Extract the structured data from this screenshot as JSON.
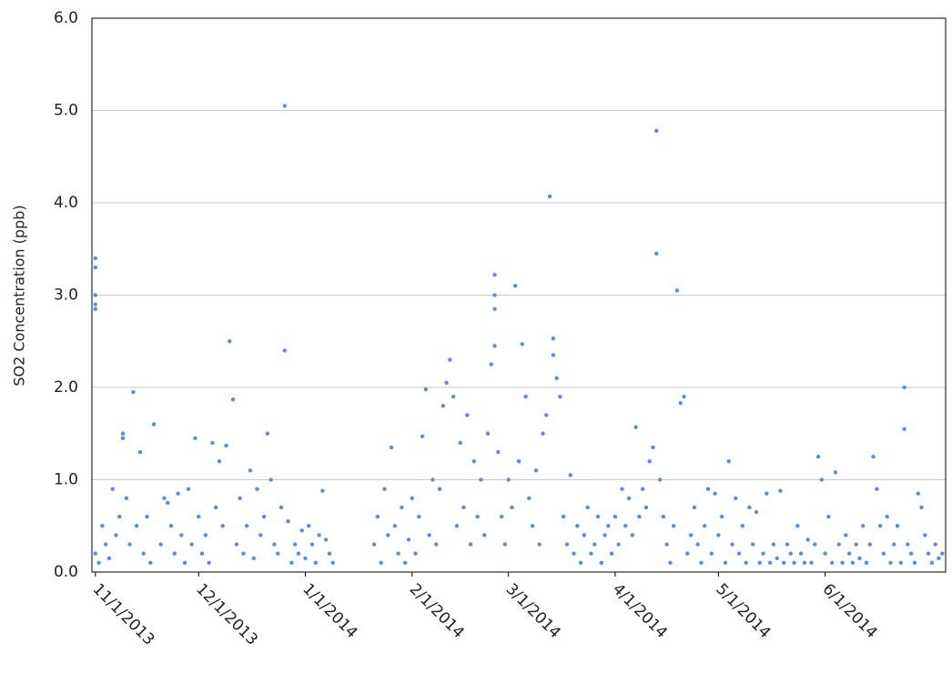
{
  "chart_data": {
    "type": "scatter",
    "y_label": "SO2 Concentration (ppb)",
    "color": "#5b8ed6",
    "grid": true,
    "ylim": [
      0,
      6
    ],
    "yticks": [
      {
        "value": 0,
        "label": "0.0"
      },
      {
        "value": 1,
        "label": "1.0"
      },
      {
        "value": 2,
        "label": "2.0"
      },
      {
        "value": 3,
        "label": "3.0"
      },
      {
        "value": 4,
        "label": "4.0"
      },
      {
        "value": 5,
        "label": "5.0"
      },
      {
        "value": 6,
        "label": "6.0"
      }
    ],
    "xlim": [
      "2013-10-31",
      "2014-07-06"
    ],
    "xticks": [
      {
        "value": "2013-11-01",
        "label": "11/1/2013"
      },
      {
        "value": "2013-12-01",
        "label": "12/1/2013"
      },
      {
        "value": "2014-01-01",
        "label": "1/1/2014"
      },
      {
        "value": "2014-02-01",
        "label": "2/1/2014"
      },
      {
        "value": "2014-03-01",
        "label": "3/1/2014"
      },
      {
        "value": "2014-04-01",
        "label": "4/1/2014"
      },
      {
        "value": "2014-05-01",
        "label": "5/1/2014"
      },
      {
        "value": "2014-06-01",
        "label": "6/1/2014"
      }
    ],
    "x": [
      "2013-11-01",
      "2013-11-01",
      "2013-11-01",
      "2013-11-01",
      "2013-11-01",
      "2013-11-01",
      "2013-11-02",
      "2013-11-03",
      "2013-11-04",
      "2013-11-05",
      "2013-11-06",
      "2013-11-07",
      "2013-11-08",
      "2013-11-09",
      "2013-11-09",
      "2013-11-10",
      "2013-11-11",
      "2013-11-12",
      "2013-11-13",
      "2013-11-14",
      "2013-11-15",
      "2013-11-16",
      "2013-11-17",
      "2013-11-18",
      "2013-11-20",
      "2013-11-21",
      "2013-11-22",
      "2013-11-23",
      "2013-11-24",
      "2013-11-25",
      "2013-11-26",
      "2013-11-27",
      "2013-11-28",
      "2013-11-29",
      "2013-11-30",
      "2013-12-01",
      "2013-12-02",
      "2013-12-03",
      "2013-12-04",
      "2013-12-05",
      "2013-12-06",
      "2013-12-07",
      "2013-12-08",
      "2013-12-09",
      "2013-12-10",
      "2013-12-11",
      "2013-12-12",
      "2013-12-13",
      "2013-12-14",
      "2013-12-15",
      "2013-12-16",
      "2013-12-17",
      "2013-12-18",
      "2013-12-19",
      "2013-12-20",
      "2013-12-21",
      "2013-12-22",
      "2013-12-23",
      "2013-12-24",
      "2013-12-25",
      "2013-12-26",
      "2013-12-26",
      "2013-12-27",
      "2013-12-28",
      "2013-12-29",
      "2013-12-30",
      "2013-12-31",
      "2014-01-01",
      "2014-01-02",
      "2014-01-03",
      "2014-01-04",
      "2014-01-05",
      "2014-01-06",
      "2014-01-07",
      "2014-01-08",
      "2014-01-09",
      "2014-01-21",
      "2014-01-22",
      "2014-01-23",
      "2014-01-24",
      "2014-01-25",
      "2014-01-26",
      "2014-01-27",
      "2014-01-28",
      "2014-01-29",
      "2014-01-30",
      "2014-01-31",
      "2014-02-01",
      "2014-02-02",
      "2014-02-03",
      "2014-02-04",
      "2014-02-05",
      "2014-02-06",
      "2014-02-07",
      "2014-02-08",
      "2014-02-09",
      "2014-02-10",
      "2014-02-11",
      "2014-02-12",
      "2014-02-13",
      "2014-02-14",
      "2014-02-15",
      "2014-02-16",
      "2014-02-17",
      "2014-02-18",
      "2014-02-19",
      "2014-02-20",
      "2014-02-21",
      "2014-02-22",
      "2014-02-23",
      "2014-02-24",
      "2014-02-25",
      "2014-02-25",
      "2014-02-25",
      "2014-02-25",
      "2014-02-26",
      "2014-02-27",
      "2014-02-28",
      "2014-03-01",
      "2014-03-02",
      "2014-03-03",
      "2014-03-04",
      "2014-03-05",
      "2014-03-06",
      "2014-03-07",
      "2014-03-08",
      "2014-03-09",
      "2014-03-10",
      "2014-03-11",
      "2014-03-12",
      "2014-03-13",
      "2014-03-14",
      "2014-03-14",
      "2014-03-15",
      "2014-03-16",
      "2014-03-17",
      "2014-03-18",
      "2014-03-19",
      "2014-03-20",
      "2014-03-21",
      "2014-03-22",
      "2014-03-23",
      "2014-03-24",
      "2014-03-25",
      "2014-03-26",
      "2014-03-27",
      "2014-03-28",
      "2014-03-29",
      "2014-03-30",
      "2014-03-31",
      "2014-04-01",
      "2014-04-02",
      "2014-04-03",
      "2014-04-04",
      "2014-04-05",
      "2014-04-06",
      "2014-04-07",
      "2014-04-08",
      "2014-04-09",
      "2014-04-10",
      "2014-04-11",
      "2014-04-12",
      "2014-04-13",
      "2014-04-13",
      "2014-04-14",
      "2014-04-15",
      "2014-04-16",
      "2014-04-17",
      "2014-04-18",
      "2014-04-19",
      "2014-04-20",
      "2014-04-21",
      "2014-04-22",
      "2014-04-23",
      "2014-04-24",
      "2014-04-25",
      "2014-04-26",
      "2014-04-27",
      "2014-04-28",
      "2014-04-29",
      "2014-04-30",
      "2014-05-01",
      "2014-05-02",
      "2014-05-03",
      "2014-05-04",
      "2014-05-05",
      "2014-05-06",
      "2014-05-07",
      "2014-05-08",
      "2014-05-09",
      "2014-05-10",
      "2014-05-11",
      "2014-05-12",
      "2014-05-13",
      "2014-05-14",
      "2014-05-15",
      "2014-05-16",
      "2014-05-17",
      "2014-05-18",
      "2014-05-19",
      "2014-05-20",
      "2014-05-21",
      "2014-05-22",
      "2014-05-23",
      "2014-05-24",
      "2014-05-25",
      "2014-05-26",
      "2014-05-27",
      "2014-05-28",
      "2014-05-29",
      "2014-05-30",
      "2014-05-31",
      "2014-06-01",
      "2014-06-02",
      "2014-06-03",
      "2014-06-04",
      "2014-06-05",
      "2014-06-06",
      "2014-06-07",
      "2014-06-08",
      "2014-06-09",
      "2014-06-10",
      "2014-06-11",
      "2014-06-12",
      "2014-06-13",
      "2014-06-14",
      "2014-06-15",
      "2014-06-16",
      "2014-06-17",
      "2014-06-18",
      "2014-06-19",
      "2014-06-20",
      "2014-06-21",
      "2014-06-22",
      "2014-06-23",
      "2014-06-24",
      "2014-06-24",
      "2014-06-25",
      "2014-06-26",
      "2014-06-27",
      "2014-06-28",
      "2014-06-29",
      "2014-06-30",
      "2014-07-01",
      "2014-07-02",
      "2014-07-03",
      "2014-07-04",
      "2014-07-05"
    ],
    "values": [
      3.4,
      3.3,
      3.0,
      2.9,
      2.85,
      0.2,
      0.1,
      0.5,
      0.3,
      0.15,
      0.9,
      0.4,
      0.6,
      1.5,
      1.45,
      0.8,
      0.3,
      1.95,
      0.5,
      1.3,
      0.2,
      0.6,
      0.1,
      1.6,
      0.3,
      0.8,
      0.75,
      0.5,
      0.2,
      0.85,
      0.4,
      0.1,
      0.9,
      0.3,
      1.45,
      0.6,
      0.2,
      0.4,
      0.1,
      1.4,
      0.7,
      1.2,
      0.5,
      1.37,
      2.5,
      1.87,
      0.3,
      0.8,
      0.2,
      0.5,
      1.1,
      0.15,
      0.9,
      0.4,
      0.6,
      1.5,
      1.0,
      0.3,
      0.2,
      0.7,
      5.05,
      2.4,
      0.55,
      0.1,
      0.3,
      0.2,
      0.45,
      0.15,
      0.5,
      0.3,
      0.1,
      0.4,
      0.88,
      0.35,
      0.2,
      0.1,
      0.3,
      0.6,
      0.1,
      0.9,
      0.4,
      1.35,
      0.5,
      0.2,
      0.7,
      0.1,
      0.35,
      0.8,
      0.2,
      0.6,
      1.47,
      1.98,
      0.4,
      1.0,
      0.3,
      0.9,
      1.8,
      2.05,
      2.3,
      1.9,
      0.5,
      1.4,
      0.7,
      1.7,
      0.3,
      1.2,
      0.6,
      1.0,
      0.4,
      1.5,
      2.25,
      3.22,
      3.0,
      2.85,
      2.45,
      1.3,
      0.6,
      0.3,
      1.0,
      0.7,
      3.1,
      1.2,
      2.47,
      1.9,
      0.8,
      0.5,
      1.1,
      0.3,
      1.5,
      1.7,
      4.07,
      2.53,
      2.35,
      2.1,
      1.9,
      0.6,
      0.3,
      1.05,
      0.2,
      0.5,
      0.1,
      0.4,
      0.7,
      0.2,
      0.3,
      0.6,
      0.1,
      0.4,
      0.5,
      0.2,
      0.6,
      0.3,
      0.9,
      0.5,
      0.8,
      0.4,
      1.57,
      0.6,
      0.9,
      0.7,
      1.2,
      1.35,
      4.78,
      3.45,
      1.0,
      0.6,
      0.3,
      0.1,
      0.5,
      3.05,
      1.83,
      1.9,
      0.2,
      0.4,
      0.7,
      0.3,
      0.1,
      0.5,
      0.9,
      0.2,
      0.85,
      0.4,
      0.6,
      0.1,
      1.2,
      0.3,
      0.8,
      0.2,
      0.5,
      0.1,
      0.7,
      0.3,
      0.65,
      0.1,
      0.2,
      0.85,
      0.1,
      0.3,
      0.15,
      0.88,
      0.1,
      0.3,
      0.2,
      0.1,
      0.5,
      0.2,
      0.1,
      0.35,
      0.1,
      0.3,
      1.25,
      1.0,
      0.2,
      0.6,
      0.1,
      1.08,
      0.3,
      0.1,
      0.4,
      0.2,
      0.1,
      0.3,
      0.15,
      0.5,
      0.1,
      0.3,
      1.25,
      0.9,
      0.5,
      0.2,
      0.6,
      0.1,
      0.3,
      0.5,
      0.1,
      2.0,
      1.55,
      0.3,
      0.2,
      0.1,
      0.85,
      0.7,
      0.4,
      0.2,
      0.1,
      0.3,
      0.15,
      0.2
    ]
  }
}
